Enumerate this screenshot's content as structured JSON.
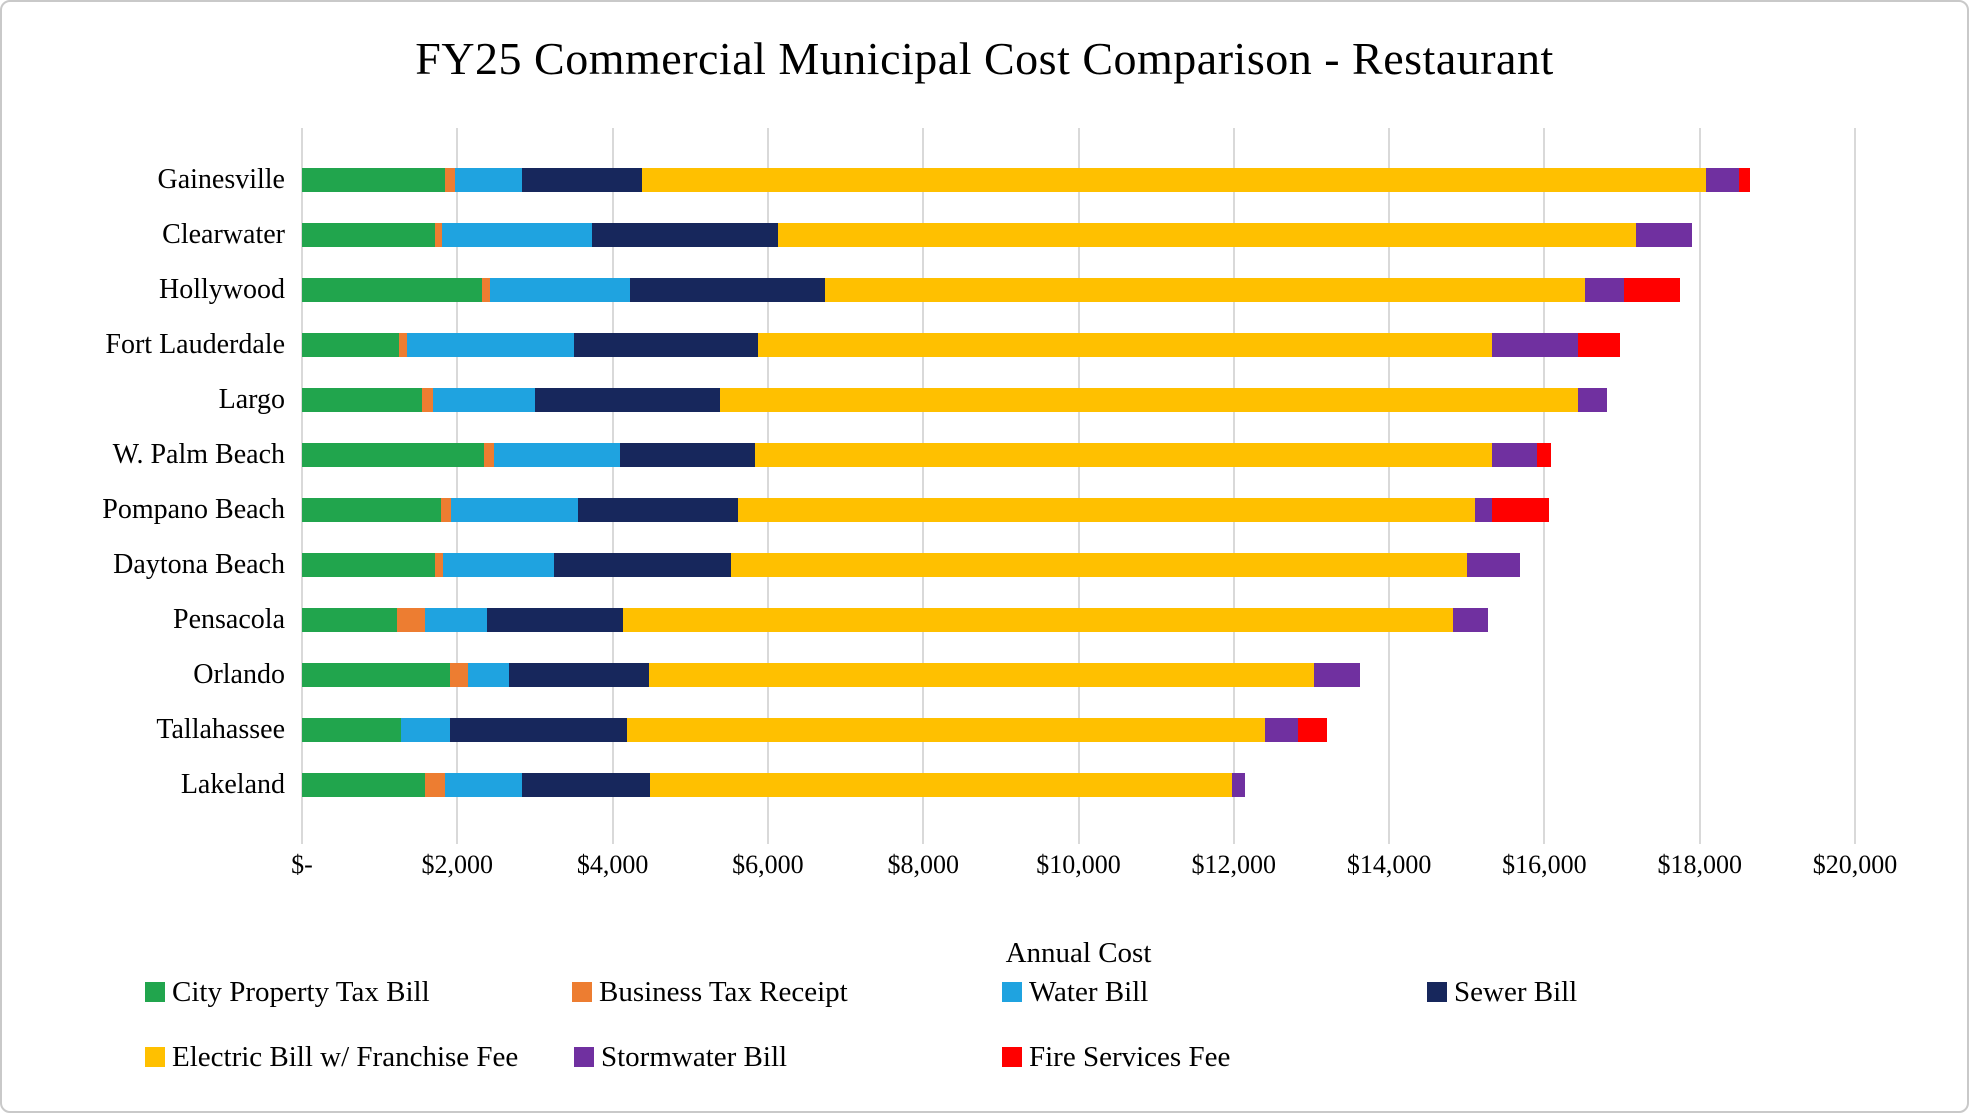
{
  "title": "FY25 Commercial Municipal Cost Comparison - Restaurant",
  "chart_data": {
    "type": "bar",
    "orientation": "horizontal",
    "stacked": true,
    "title": "FY25 Commercial Municipal Cost Comparison - Restaurant",
    "xlabel": "Annual Cost",
    "ylabel": "",
    "xlim": [
      0,
      20000
    ],
    "grid": "vertical",
    "legend_position": "bottom",
    "categories": [
      "Gainesville",
      "Clearwater",
      "Hollywood",
      "Fort Lauderdale",
      "Largo",
      "W. Palm Beach",
      "Pompano Beach",
      "Daytona Beach",
      "Pensacola",
      "Orlando",
      "Tallahassee",
      "Lakeland"
    ],
    "x_ticks": [
      {
        "value": 0,
        "label": "$-"
      },
      {
        "value": 2000,
        "label": "$2,000"
      },
      {
        "value": 4000,
        "label": "$4,000"
      },
      {
        "value": 6000,
        "label": "$6,000"
      },
      {
        "value": 8000,
        "label": "$8,000"
      },
      {
        "value": 10000,
        "label": "$10,000"
      },
      {
        "value": 12000,
        "label": "$12,000"
      },
      {
        "value": 14000,
        "label": "$14,000"
      },
      {
        "value": 16000,
        "label": "$16,000"
      },
      {
        "value": 18000,
        "label": "$18,000"
      },
      {
        "value": 20000,
        "label": "$20,000"
      }
    ],
    "series": [
      {
        "name": "City Property Tax Bill",
        "color": "#21A54D",
        "values": [
          1840,
          1710,
          2320,
          1250,
          1550,
          2350,
          1790,
          1710,
          1220,
          1900,
          1270,
          1580
        ]
      },
      {
        "name": "Business Tax Receipt",
        "color": "#ED7D31",
        "values": [
          130,
          90,
          100,
          100,
          140,
          120,
          130,
          110,
          370,
          240,
          0,
          260
        ]
      },
      {
        "name": "Water Bill",
        "color": "#1FA3E0",
        "values": [
          860,
          1930,
          1800,
          2150,
          1310,
          1620,
          1640,
          1430,
          790,
          520,
          640,
          990
        ]
      },
      {
        "name": "Sewer Bill",
        "color": "#17275C",
        "values": [
          1550,
          2400,
          2510,
          2370,
          2380,
          1740,
          2050,
          2280,
          1750,
          1810,
          2270,
          1650
        ]
      },
      {
        "name": "Electric Bill w/ Franchise Fee",
        "color": "#FFC000",
        "values": [
          13700,
          11050,
          9790,
          9450,
          11050,
          9500,
          9500,
          9470,
          10690,
          8560,
          8220,
          7500
        ]
      },
      {
        "name": "Stormwater Bill",
        "color": "#7030A0",
        "values": [
          430,
          720,
          500,
          1110,
          370,
          570,
          220,
          690,
          450,
          590,
          430,
          160
        ]
      },
      {
        "name": "Fire Services Fee",
        "color": "#FF0000",
        "values": [
          140,
          0,
          720,
          540,
          0,
          190,
          730,
          0,
          0,
          0,
          370,
          0
        ]
      }
    ],
    "totals": [
      18650,
      17900,
      17740,
      16970,
      16800,
      16090,
      16060,
      15690,
      15270,
      13620,
      13200,
      12140
    ],
    "legend_rows": [
      [
        0,
        1,
        2,
        3
      ],
      [
        4,
        5,
        6
      ]
    ]
  }
}
